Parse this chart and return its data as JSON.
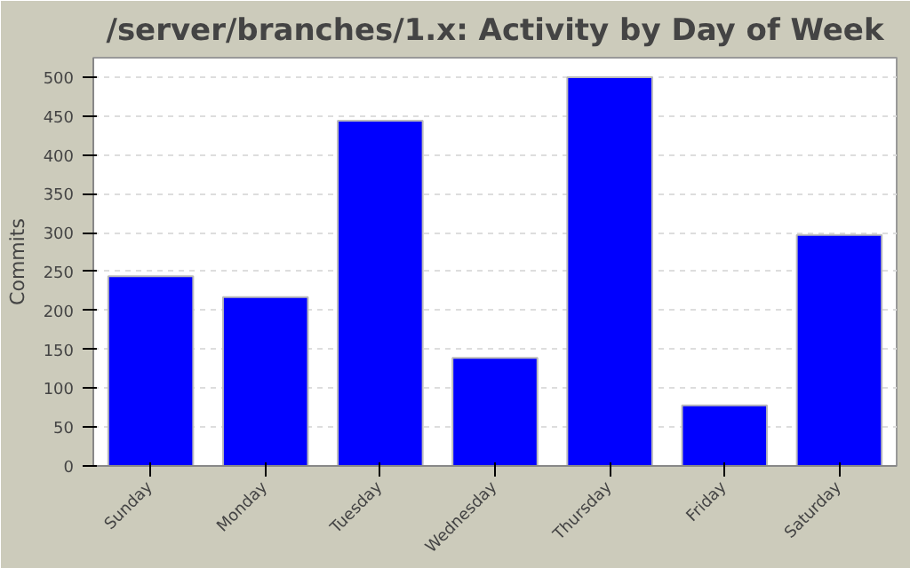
{
  "chart_data": {
    "type": "bar",
    "title": "/server/branches/1.x: Activity by Day of Week",
    "ylabel": "Commits",
    "categories": [
      "Sunday",
      "Monday",
      "Tuesday",
      "Wednesday",
      "Thursday",
      "Friday",
      "Saturday"
    ],
    "values": [
      244,
      217,
      444,
      139,
      500,
      78,
      297
    ],
    "color": "#0000ff",
    "ylim": [
      0,
      525
    ],
    "yticks": [
      0,
      50,
      100,
      150,
      200,
      250,
      300,
      350,
      400,
      450,
      500
    ],
    "grid": "y"
  }
}
